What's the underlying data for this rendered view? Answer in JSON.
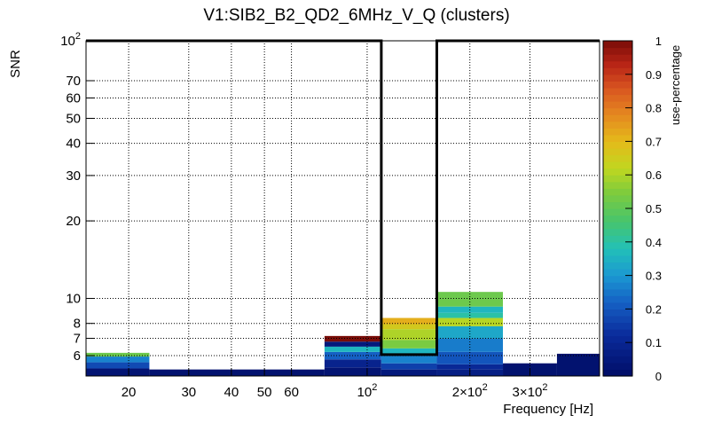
{
  "chart_data": {
    "type": "heatmap",
    "title": "V1:SIB2_B2_QD2_6MHz_V_Q (clusters)",
    "xlabel": "Frequency [Hz]",
    "ylabel": "SNR",
    "zlabel": "use-percentage",
    "xscale": "log",
    "yscale": "log",
    "xlim": [
      15,
      480
    ],
    "ylim": [
      5,
      100
    ],
    "zlim": [
      0,
      1
    ],
    "grid": true,
    "x_ticks": [
      {
        "value": 20,
        "label": "20"
      },
      {
        "value": 30,
        "label": "30"
      },
      {
        "value": 40,
        "label": "40"
      },
      {
        "value": 50,
        "label": "50"
      },
      {
        "value": 60,
        "label": "60"
      },
      {
        "value": 100,
        "label": "10",
        "sup": "2"
      },
      {
        "value": 200,
        "label": "2×10",
        "sup": "2"
      },
      {
        "value": 300,
        "label": "3×10",
        "sup": "2"
      }
    ],
    "y_ticks": [
      {
        "value": 6,
        "label": "6"
      },
      {
        "value": 7,
        "label": "7"
      },
      {
        "value": 8,
        "label": "8"
      },
      {
        "value": 10,
        "label": "10"
      },
      {
        "value": 20,
        "label": "20"
      },
      {
        "value": 30,
        "label": "30"
      },
      {
        "value": 40,
        "label": "40"
      },
      {
        "value": 50,
        "label": "50"
      },
      {
        "value": 60,
        "label": "60"
      },
      {
        "value": 70,
        "label": "70"
      },
      {
        "value": 100,
        "label": "10",
        "sup": "2"
      }
    ],
    "z_ticks": [
      0,
      0.1,
      0.2,
      0.3,
      0.4,
      0.5,
      0.6,
      0.7,
      0.8,
      0.9,
      1
    ],
    "cells": [
      {
        "x0": 15,
        "x1": 23,
        "y0": 5,
        "y1": 5.35,
        "z": 0.03
      },
      {
        "x0": 15,
        "x1": 23,
        "y0": 5.35,
        "y1": 5.65,
        "z": 0.18
      },
      {
        "x0": 15,
        "x1": 23,
        "y0": 5.65,
        "y1": 5.95,
        "z": 0.27
      },
      {
        "x0": 15,
        "x1": 23,
        "y0": 5.95,
        "y1": 6.15,
        "z": 0.52
      },
      {
        "x0": 23,
        "x1": 75,
        "y0": 5,
        "y1": 5.3,
        "z": 0.02
      },
      {
        "x0": 75,
        "x1": 110,
        "y0": 5,
        "y1": 5.4,
        "z": 0.03
      },
      {
        "x0": 75,
        "x1": 110,
        "y0": 5.4,
        "y1": 5.8,
        "z": 0.09
      },
      {
        "x0": 75,
        "x1": 110,
        "y0": 5.8,
        "y1": 6.2,
        "z": 0.22
      },
      {
        "x0": 75,
        "x1": 110,
        "y0": 6.2,
        "y1": 6.5,
        "z": 0.36
      },
      {
        "x0": 75,
        "x1": 110,
        "y0": 6.5,
        "y1": 6.8,
        "z": 0.05
      },
      {
        "x0": 75,
        "x1": 110,
        "y0": 6.8,
        "y1": 7.15,
        "z": 1.0
      },
      {
        "x0": 110,
        "x1": 160,
        "y0": 5,
        "y1": 5.3,
        "z": 0.05
      },
      {
        "x0": 110,
        "x1": 160,
        "y0": 5.3,
        "y1": 5.6,
        "z": 0.16
      },
      {
        "x0": 110,
        "x1": 160,
        "y0": 5.6,
        "y1": 6.0,
        "z": 0.27
      },
      {
        "x0": 110,
        "x1": 160,
        "y0": 6.0,
        "y1": 6.4,
        "z": 0.36
      },
      {
        "x0": 110,
        "x1": 160,
        "y0": 6.4,
        "y1": 6.9,
        "z": 0.54
      },
      {
        "x0": 110,
        "x1": 160,
        "y0": 6.9,
        "y1": 7.6,
        "z": 0.6
      },
      {
        "x0": 110,
        "x1": 160,
        "y0": 7.6,
        "y1": 7.95,
        "z": 0.66
      },
      {
        "x0": 110,
        "x1": 160,
        "y0": 7.95,
        "y1": 8.4,
        "z": 0.72
      },
      {
        "x0": 160,
        "x1": 250,
        "y0": 5,
        "y1": 5.3,
        "z": 0.07
      },
      {
        "x0": 160,
        "x1": 250,
        "y0": 5.3,
        "y1": 5.55,
        "z": 0.11
      },
      {
        "x0": 160,
        "x1": 250,
        "y0": 5.55,
        "y1": 6.2,
        "z": 0.2
      },
      {
        "x0": 160,
        "x1": 250,
        "y0": 6.2,
        "y1": 7.0,
        "z": 0.26
      },
      {
        "x0": 160,
        "x1": 250,
        "y0": 7.0,
        "y1": 7.8,
        "z": 0.33
      },
      {
        "x0": 160,
        "x1": 250,
        "y0": 7.8,
        "y1": 8.4,
        "z": 0.61
      },
      {
        "x0": 160,
        "x1": 250,
        "y0": 8.4,
        "y1": 8.8,
        "z": 0.4
      },
      {
        "x0": 160,
        "x1": 250,
        "y0": 8.8,
        "y1": 9.3,
        "z": 0.36
      },
      {
        "x0": 160,
        "x1": 250,
        "y0": 9.3,
        "y1": 10.6,
        "z": 0.52
      },
      {
        "x0": 250,
        "x1": 360,
        "y0": 5,
        "y1": 5.6,
        "z": 0.02
      },
      {
        "x0": 360,
        "x1": 480,
        "y0": 5,
        "y1": 6.1,
        "z": 0.02
      }
    ],
    "threshold_line": [
      {
        "x": 15,
        "y": 100
      },
      {
        "x": 110,
        "y": 100
      },
      {
        "x": 110,
        "y": 6.05
      },
      {
        "x": 160,
        "y": 6.05
      },
      {
        "x": 160,
        "y": 100
      },
      {
        "x": 480,
        "y": 100
      }
    ]
  }
}
